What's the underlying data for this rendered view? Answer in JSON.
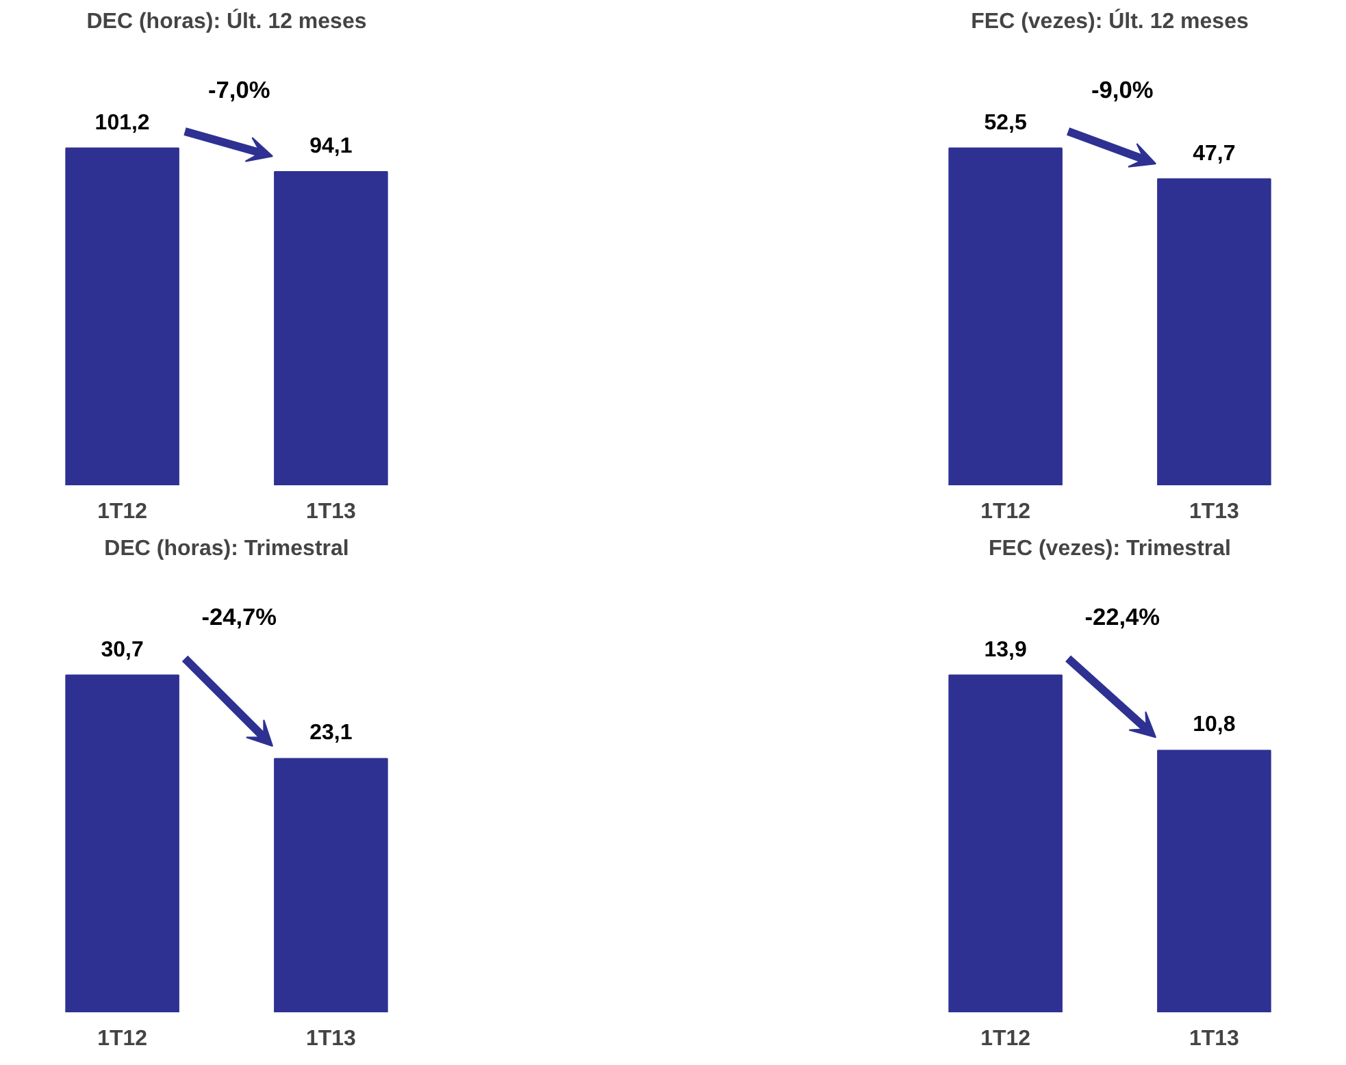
{
  "chart_data": [
    {
      "type": "bar",
      "title": "DEC (horas): Últ. 12 meses",
      "categories": [
        "1T12",
        "1T13"
      ],
      "values": [
        101.2,
        94.1
      ],
      "value_labels": [
        "101,2",
        "94,1"
      ],
      "color": "#2e3192",
      "annotations": [
        "-7,0%"
      ],
      "grid": false,
      "legend": false
    },
    {
      "type": "bar",
      "title": "FEC (vezes): Últ. 12 meses",
      "categories": [
        "1T12",
        "1T13"
      ],
      "values": [
        52.5,
        47.7
      ],
      "value_labels": [
        "52,5",
        "47,7"
      ],
      "color": "#2e3192",
      "annotations": [
        "-9,0%"
      ],
      "grid": false,
      "legend": false
    },
    {
      "type": "bar",
      "title": "DEC (horas): Trimestral",
      "categories": [
        "1T12",
        "1T13"
      ],
      "values": [
        30.7,
        23.1
      ],
      "value_labels": [
        "30,7",
        "23,1"
      ],
      "color": "#2e3192",
      "annotations": [
        "-24,7%"
      ],
      "grid": false,
      "legend": false
    },
    {
      "type": "bar",
      "title": "FEC (vezes): Trimestral",
      "categories": [
        "1T12",
        "1T13"
      ],
      "values": [
        13.9,
        10.8
      ],
      "value_labels": [
        "13,9",
        "10,8"
      ],
      "color": "#2e3192",
      "annotations": [
        "-22,4%"
      ],
      "grid": false,
      "legend": false
    }
  ]
}
